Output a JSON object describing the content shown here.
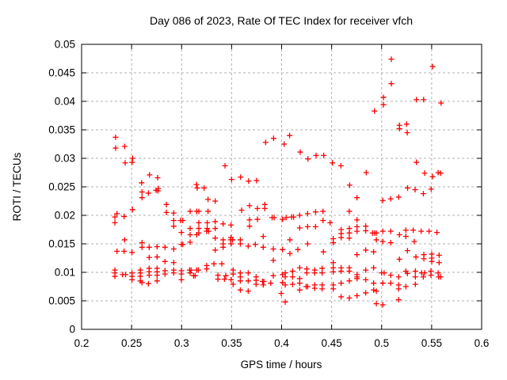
{
  "chart_data": {
    "type": "scatter",
    "title": "Day 086 of 2023, Rate Of TEC Index for receiver vfch",
    "xlabel": "GPS time / hours",
    "ylabel": "ROTI / TECUs",
    "xlim": [
      0.2,
      0.6
    ],
    "ylim": [
      0,
      0.05
    ],
    "xticks": [
      0.2,
      0.25,
      0.3,
      0.35,
      0.4,
      0.45,
      0.5,
      0.55,
      0.6
    ],
    "xtick_labels": [
      "0.2",
      "0.25",
      "0.3",
      "0.35",
      "0.4",
      "0.45",
      "0.5",
      "0.55",
      "0.6"
    ],
    "yticks": [
      0,
      0.005,
      0.01,
      0.015,
      0.02,
      0.025,
      0.03,
      0.035,
      0.04,
      0.045,
      0.05
    ],
    "ytick_labels": [
      "0",
      "0.005",
      "0.01",
      "0.015",
      "0.02",
      "0.025",
      "0.03",
      "0.035",
      "0.04",
      "0.045",
      "0.05"
    ],
    "grid": true,
    "legend": false,
    "marker": "plus",
    "marker_color": "#ff0000",
    "grid_color": "#b0b0b0",
    "axis_color": "#000000",
    "background_color": "#ffffff",
    "points": [
      [
        0.234,
        0.0337
      ],
      [
        0.234,
        0.0318
      ],
      [
        0.243,
        0.0321
      ],
      [
        0.251,
        0.03
      ],
      [
        0.2436,
        0.0292
      ],
      [
        0.2505,
        0.0293
      ],
      [
        0.2679,
        0.0271
      ],
      [
        0.276,
        0.0266
      ],
      [
        0.26,
        0.0257
      ],
      [
        0.2766,
        0.0247
      ],
      [
        0.384,
        0.0328
      ],
      [
        0.392,
        0.0335
      ],
      [
        0.4025,
        0.0325
      ],
      [
        0.408,
        0.034
      ],
      [
        0.3434,
        0.0287
      ],
      [
        0.35,
        0.0263
      ],
      [
        0.359,
        0.0267
      ],
      [
        0.367,
        0.026
      ],
      [
        0.375,
        0.0261
      ],
      [
        0.3149,
        0.0254
      ],
      [
        0.4928,
        0.0383
      ],
      [
        0.4186,
        0.0311
      ],
      [
        0.4263,
        0.0299
      ],
      [
        0.4345,
        0.0305
      ],
      [
        0.4421,
        0.0305
      ],
      [
        0.4508,
        0.0292
      ],
      [
        0.4593,
        0.0287
      ],
      [
        0.4846,
        0.0275
      ],
      [
        0.468,
        0.0253
      ],
      [
        0.5097,
        0.0474
      ],
      [
        0.551,
        0.0461
      ],
      [
        0.5097,
        0.0431
      ],
      [
        0.5018,
        0.0407
      ],
      [
        0.5018,
        0.0394
      ],
      [
        0.5348,
        0.0403
      ],
      [
        0.542,
        0.0403
      ],
      [
        0.5594,
        0.0397
      ],
      [
        0.5178,
        0.0358
      ],
      [
        0.525,
        0.036
      ],
      [
        0.5178,
        0.0352
      ],
      [
        0.5256,
        0.0345
      ],
      [
        0.5348,
        0.0293
      ],
      [
        0.543,
        0.0274
      ],
      [
        0.5565,
        0.0275
      ],
      [
        0.559,
        0.0274
      ],
      [
        0.551,
        0.0268
      ],
      [
        0.526,
        0.0248
      ],
      [
        0.5335,
        0.0245
      ],
      [
        0.5495,
        0.0246
      ],
      [
        0.2604,
        0.0241
      ],
      [
        0.2668,
        0.0239
      ],
      [
        0.2745,
        0.0244
      ],
      [
        0.2763,
        0.0243
      ],
      [
        0.2604,
        0.0231
      ],
      [
        0.2848,
        0.0219
      ],
      [
        0.2848,
        0.0205
      ],
      [
        0.2509,
        0.021
      ],
      [
        0.2354,
        0.0203
      ],
      [
        0.2425,
        0.0198
      ],
      [
        0.2333,
        0.0197
      ],
      [
        0.2333,
        0.0187
      ],
      [
        0.2921,
        0.0204
      ],
      [
        0.2921,
        0.0191
      ],
      [
        0.2921,
        0.0181
      ],
      [
        0.299,
        0.0191
      ],
      [
        0.3012,
        0.0191
      ],
      [
        0.3085,
        0.0207
      ],
      [
        0.3151,
        0.0207
      ],
      [
        0.3085,
        0.0177
      ],
      [
        0.2998,
        0.017
      ],
      [
        0.3085,
        0.0166
      ],
      [
        0.3151,
        0.0166
      ],
      [
        0.243,
        0.0157
      ],
      [
        0.2604,
        0.0152
      ],
      [
        0.2604,
        0.0144
      ],
      [
        0.2676,
        0.0144
      ],
      [
        0.2755,
        0.0145
      ],
      [
        0.2834,
        0.0144
      ],
      [
        0.2921,
        0.0141
      ],
      [
        0.2998,
        0.0149
      ],
      [
        0.3012,
        0.0149
      ],
      [
        0.3085,
        0.0153
      ],
      [
        0.2354,
        0.0137
      ],
      [
        0.2425,
        0.0137
      ],
      [
        0.2504,
        0.0135
      ],
      [
        0.2676,
        0.0126
      ],
      [
        0.2755,
        0.0127
      ],
      [
        0.2834,
        0.0119
      ],
      [
        0.2921,
        0.0117
      ],
      [
        0.2333,
        0.0104
      ],
      [
        0.2333,
        0.0099
      ],
      [
        0.2333,
        0.0093
      ],
      [
        0.241,
        0.0096
      ],
      [
        0.244,
        0.0096
      ],
      [
        0.2504,
        0.0099
      ],
      [
        0.2504,
        0.0093
      ],
      [
        0.2504,
        0.0087
      ],
      [
        0.2587,
        0.0104
      ],
      [
        0.2587,
        0.0099
      ],
      [
        0.2587,
        0.0093
      ],
      [
        0.2587,
        0.0085
      ],
      [
        0.2676,
        0.0107
      ],
      [
        0.2676,
        0.0101
      ],
      [
        0.2676,
        0.0095
      ],
      [
        0.2755,
        0.0107
      ],
      [
        0.2755,
        0.0101
      ],
      [
        0.2755,
        0.0095
      ],
      [
        0.2834,
        0.0103
      ],
      [
        0.2834,
        0.0097
      ],
      [
        0.2921,
        0.0104
      ],
      [
        0.2921,
        0.0099
      ],
      [
        0.2998,
        0.0103
      ],
      [
        0.2998,
        0.0097
      ],
      [
        0.2998,
        0.0087
      ],
      [
        0.308,
        0.0104
      ],
      [
        0.3095,
        0.0104
      ],
      [
        0.3151,
        0.0104
      ],
      [
        0.3085,
        0.0099
      ],
      [
        0.2755,
        0.0085
      ],
      [
        0.2604,
        0.0082
      ],
      [
        0.2668,
        0.008
      ],
      [
        0.3156,
        0.0248
      ],
      [
        0.3225,
        0.0248
      ],
      [
        0.3264,
        0.0228
      ],
      [
        0.3336,
        0.0225
      ],
      [
        0.3172,
        0.0207
      ],
      [
        0.3264,
        0.0207
      ],
      [
        0.36,
        0.0209
      ],
      [
        0.3679,
        0.0217
      ],
      [
        0.3758,
        0.0212
      ],
      [
        0.3832,
        0.0219
      ],
      [
        0.3832,
        0.0212
      ],
      [
        0.3679,
        0.0192
      ],
      [
        0.3758,
        0.0193
      ],
      [
        0.3905,
        0.0196
      ],
      [
        0.3925,
        0.0196
      ],
      [
        0.4009,
        0.0193
      ],
      [
        0.3679,
        0.0181
      ],
      [
        0.3172,
        0.0187
      ],
      [
        0.3172,
        0.0177
      ],
      [
        0.3172,
        0.0169
      ],
      [
        0.3256,
        0.0187
      ],
      [
        0.3256,
        0.0177
      ],
      [
        0.325,
        0.0172
      ],
      [
        0.327,
        0.0172
      ],
      [
        0.3336,
        0.0189
      ],
      [
        0.3336,
        0.0177
      ],
      [
        0.3415,
        0.0185
      ],
      [
        0.3494,
        0.0183
      ],
      [
        0.3336,
        0.016
      ],
      [
        0.3336,
        0.0139
      ],
      [
        0.3415,
        0.0157
      ],
      [
        0.3415,
        0.015
      ],
      [
        0.3415,
        0.0144
      ],
      [
        0.3494,
        0.0161
      ],
      [
        0.349,
        0.0157
      ],
      [
        0.351,
        0.0157
      ],
      [
        0.3494,
        0.015
      ],
      [
        0.3587,
        0.0157
      ],
      [
        0.3587,
        0.015
      ],
      [
        0.3666,
        0.0146
      ],
      [
        0.3737,
        0.0149
      ],
      [
        0.3816,
        0.0144
      ],
      [
        0.3816,
        0.0163
      ],
      [
        0.3917,
        0.0141
      ],
      [
        0.4009,
        0.014
      ],
      [
        0.3917,
        0.0121
      ],
      [
        0.3323,
        0.0115
      ],
      [
        0.3402,
        0.0115
      ],
      [
        0.3251,
        0.0112
      ],
      [
        0.3251,
        0.0106
      ],
      [
        0.3168,
        0.0104
      ],
      [
        0.312,
        0.0094
      ],
      [
        0.3135,
        0.0094
      ],
      [
        0.3515,
        0.0104
      ],
      [
        0.3515,
        0.0097
      ],
      [
        0.3442,
        0.0094
      ],
      [
        0.3363,
        0.0095
      ],
      [
        0.3363,
        0.0088
      ],
      [
        0.3429,
        0.0088
      ],
      [
        0.3494,
        0.0087
      ],
      [
        0.3587,
        0.0099
      ],
      [
        0.3666,
        0.0099
      ],
      [
        0.3587,
        0.0092
      ],
      [
        0.3587,
        0.0085
      ],
      [
        0.3666,
        0.0085
      ],
      [
        0.3515,
        0.0079
      ],
      [
        0.3587,
        0.0069
      ],
      [
        0.3666,
        0.0067
      ],
      [
        0.3745,
        0.0092
      ],
      [
        0.3745,
        0.0086
      ],
      [
        0.3745,
        0.0079
      ],
      [
        0.381,
        0.0084
      ],
      [
        0.3822,
        0.0084
      ],
      [
        0.3816,
        0.0078
      ],
      [
        0.3891,
        0.0081
      ],
      [
        0.3917,
        0.0094
      ],
      [
        0.4009,
        0.0096
      ],
      [
        0.4009,
        0.0082
      ],
      [
        0.3996,
        0.0063
      ],
      [
        0.4754,
        0.0231
      ],
      [
        0.4677,
        0.0207
      ],
      [
        0.4045,
        0.0196
      ],
      [
        0.41,
        0.0197
      ],
      [
        0.412,
        0.0197
      ],
      [
        0.4181,
        0.02
      ],
      [
        0.426,
        0.0203
      ],
      [
        0.434,
        0.0206
      ],
      [
        0.4414,
        0.0207
      ],
      [
        0.4414,
        0.0191
      ],
      [
        0.4485,
        0.0187
      ],
      [
        0.4181,
        0.0178
      ],
      [
        0.426,
        0.018
      ],
      [
        0.4339,
        0.018
      ],
      [
        0.426,
        0.015
      ],
      [
        0.4083,
        0.0157
      ],
      [
        0.4083,
        0.0133
      ],
      [
        0.4162,
        0.014
      ],
      [
        0.4418,
        0.0136
      ],
      [
        0.4516,
        0.0159
      ],
      [
        0.4516,
        0.0152
      ],
      [
        0.4595,
        0.0175
      ],
      [
        0.4595,
        0.0168
      ],
      [
        0.4595,
        0.0161
      ],
      [
        0.4677,
        0.0177
      ],
      [
        0.4677,
        0.0169
      ],
      [
        0.4677,
        0.016
      ],
      [
        0.4754,
        0.0192
      ],
      [
        0.4754,
        0.018
      ],
      [
        0.4754,
        0.0172
      ],
      [
        0.4841,
        0.0181
      ],
      [
        0.4841,
        0.0173
      ],
      [
        0.491,
        0.0169
      ],
      [
        0.493,
        0.0169
      ],
      [
        0.4841,
        0.0139
      ],
      [
        0.4754,
        0.0131
      ],
      [
        0.492,
        0.0136
      ],
      [
        0.4036,
        0.0099
      ],
      [
        0.4036,
        0.0092
      ],
      [
        0.4036,
        0.0078
      ],
      [
        0.411,
        0.0102
      ],
      [
        0.411,
        0.0092
      ],
      [
        0.411,
        0.0079
      ],
      [
        0.4181,
        0.0108
      ],
      [
        0.4181,
        0.0089
      ],
      [
        0.4181,
        0.0081
      ],
      [
        0.4181,
        0.0069
      ],
      [
        0.4252,
        0.0106
      ],
      [
        0.4252,
        0.0099
      ],
      [
        0.4245,
        0.0075
      ],
      [
        0.426,
        0.0075
      ],
      [
        0.4331,
        0.0104
      ],
      [
        0.4331,
        0.0099
      ],
      [
        0.4331,
        0.0078
      ],
      [
        0.4331,
        0.0072
      ],
      [
        0.4405,
        0.0107
      ],
      [
        0.4405,
        0.0099
      ],
      [
        0.4405,
        0.0078
      ],
      [
        0.4405,
        0.0071
      ],
      [
        0.4516,
        0.0117
      ],
      [
        0.4516,
        0.0108
      ],
      [
        0.4516,
        0.0101
      ],
      [
        0.4516,
        0.0078
      ],
      [
        0.4516,
        0.0071
      ],
      [
        0.4595,
        0.0108
      ],
      [
        0.4595,
        0.0102
      ],
      [
        0.4595,
        0.0081
      ],
      [
        0.4595,
        0.0057
      ],
      [
        0.4677,
        0.0108
      ],
      [
        0.4677,
        0.0102
      ],
      [
        0.4677,
        0.0085
      ],
      [
        0.4677,
        0.0055
      ],
      [
        0.4754,
        0.0096
      ],
      [
        0.4754,
        0.0092
      ],
      [
        0.4754,
        0.0089
      ],
      [
        0.4754,
        0.0059
      ],
      [
        0.4841,
        0.0104
      ],
      [
        0.4841,
        0.0087
      ],
      [
        0.4841,
        0.0064
      ],
      [
        0.492,
        0.0108
      ],
      [
        0.492,
        0.0081
      ],
      [
        0.492,
        0.0069
      ],
      [
        0.4036,
        0.0048
      ],
      [
        0.5417,
        0.0238
      ],
      [
        0.5012,
        0.0226
      ],
      [
        0.5091,
        0.0229
      ],
      [
        0.517,
        0.0232
      ],
      [
        0.4947,
        0.0169
      ],
      [
        0.5012,
        0.0172
      ],
      [
        0.5091,
        0.0172
      ],
      [
        0.5242,
        0.0174
      ],
      [
        0.5316,
        0.0174
      ],
      [
        0.5395,
        0.0172
      ],
      [
        0.5474,
        0.0172
      ],
      [
        0.5553,
        0.017
      ],
      [
        0.5178,
        0.0166
      ],
      [
        0.5242,
        0.0163
      ],
      [
        0.5012,
        0.0154
      ],
      [
        0.5091,
        0.0152
      ],
      [
        0.4947,
        0.0157
      ],
      [
        0.5326,
        0.0154
      ],
      [
        0.5258,
        0.0138
      ],
      [
        0.5343,
        0.0127
      ],
      [
        0.5178,
        0.0123
      ],
      [
        0.5422,
        0.0131
      ],
      [
        0.5422,
        0.0124
      ],
      [
        0.5501,
        0.0132
      ],
      [
        0.5501,
        0.0125
      ],
      [
        0.5575,
        0.013
      ],
      [
        0.5575,
        0.0117
      ],
      [
        0.5501,
        0.0119
      ],
      [
        0.5,
        0.0099
      ],
      [
        0.5025,
        0.0099
      ],
      [
        0.5091,
        0.0095
      ],
      [
        0.517,
        0.0092
      ],
      [
        0.5242,
        0.0102
      ],
      [
        0.5258,
        0.0098
      ],
      [
        0.5337,
        0.0102
      ],
      [
        0.5337,
        0.0092
      ],
      [
        0.54,
        0.0099
      ],
      [
        0.543,
        0.0099
      ],
      [
        0.5417,
        0.0092
      ],
      [
        0.5493,
        0.0102
      ],
      [
        0.5493,
        0.0095
      ],
      [
        0.5565,
        0.0099
      ],
      [
        0.557,
        0.0092
      ],
      [
        0.559,
        0.0092
      ],
      [
        0.5012,
        0.0081
      ],
      [
        0.5091,
        0.0081
      ],
      [
        0.517,
        0.0078
      ],
      [
        0.517,
        0.0071
      ],
      [
        0.5242,
        0.0075
      ],
      [
        0.5337,
        0.0079
      ],
      [
        0.4947,
        0.0067
      ],
      [
        0.5012,
        0.0043
      ],
      [
        0.4947,
        0.0045
      ],
      [
        0.517,
        0.0052
      ]
    ]
  }
}
